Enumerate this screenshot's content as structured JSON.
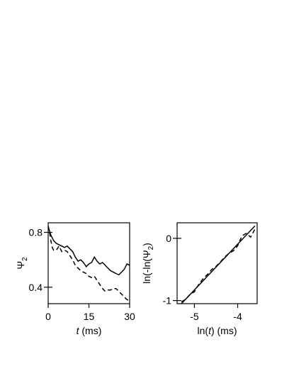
{
  "chart_data": [
    {
      "type": "line",
      "xlabel": {
        "italic": "t",
        "rest": " (ms)"
      },
      "ylabel": {
        "base": "Ψ",
        "sub": "2"
      },
      "xlim": [
        0,
        30
      ],
      "ylim": [
        0.28,
        0.87
      ],
      "xticks": [
        {
          "value": 0,
          "label": "0"
        },
        {
          "value": 15,
          "label": "15"
        },
        {
          "value": 30,
          "label": "30"
        }
      ],
      "yticks": [
        {
          "value": 0.4,
          "label": "0.4"
        },
        {
          "value": 0.8,
          "label": "0.8"
        }
      ],
      "series": [
        {
          "style": "solid",
          "x": [
            0,
            0.5,
            1,
            1.5,
            2,
            3,
            4,
            5,
            6,
            7,
            8,
            9,
            10,
            11,
            12,
            13,
            14,
            15,
            16,
            17,
            18,
            19,
            20,
            21,
            22,
            23,
            24,
            25,
            26,
            27,
            28,
            29,
            30
          ],
          "y": [
            0.84,
            0.81,
            0.78,
            0.76,
            0.74,
            0.72,
            0.71,
            0.7,
            0.69,
            0.7,
            0.68,
            0.66,
            0.62,
            0.59,
            0.6,
            0.58,
            0.55,
            0.57,
            0.58,
            0.62,
            0.59,
            0.57,
            0.58,
            0.56,
            0.54,
            0.52,
            0.51,
            0.5,
            0.49,
            0.51,
            0.53,
            0.57,
            0.56
          ]
        },
        {
          "style": "dashed",
          "x": [
            0,
            0.5,
            1,
            1.5,
            2,
            3,
            4,
            5,
            6,
            7,
            8,
            9,
            10,
            11,
            12,
            13,
            14,
            15,
            16,
            17,
            18,
            19,
            20,
            21,
            22,
            23,
            24,
            25,
            26,
            27,
            28,
            29,
            30
          ],
          "y": [
            0.85,
            0.8,
            0.74,
            0.69,
            0.67,
            0.67,
            0.7,
            0.66,
            0.67,
            0.66,
            0.63,
            0.6,
            0.56,
            0.54,
            0.52,
            0.51,
            0.5,
            0.48,
            0.47,
            0.48,
            0.45,
            0.42,
            0.39,
            0.37,
            0.38,
            0.38,
            0.39,
            0.39,
            0.37,
            0.35,
            0.33,
            0.31,
            0.3
          ]
        }
      ]
    },
    {
      "type": "line",
      "xlabel": {
        "pre": "ln(",
        "italic": "t",
        "post": ") (ms)"
      },
      "ylabel": {
        "pre": "ln(-ln(Ψ",
        "sub": "2",
        "post": ")"
      },
      "xlim": [
        -5.4,
        -3.55
      ],
      "ylim": [
        -1.05,
        0.25
      ],
      "xticks": [
        {
          "value": -5,
          "label": "-5"
        },
        {
          "value": -4,
          "label": "-4"
        }
      ],
      "yticks": [
        {
          "value": -1,
          "label": "-1"
        },
        {
          "value": 0,
          "label": "0"
        }
      ],
      "series": [
        {
          "style": "solid",
          "x": [
            -5.3,
            -3.6
          ],
          "y": [
            -1.05,
            0.2
          ]
        },
        {
          "style": "dashed",
          "x": [
            -5.3,
            -5.2,
            -5.1,
            -5.0,
            -4.9,
            -4.8,
            -4.7,
            -4.6,
            -4.5,
            -4.4,
            -4.3,
            -4.2,
            -4.1,
            -4.0,
            -3.9,
            -3.8,
            -3.7,
            -3.6
          ],
          "y": [
            -1.02,
            -0.98,
            -0.9,
            -0.86,
            -0.74,
            -0.65,
            -0.58,
            -0.5,
            -0.45,
            -0.38,
            -0.3,
            -0.24,
            -0.2,
            -0.12,
            0.04,
            0.08,
            0.02,
            0.15
          ]
        }
      ]
    }
  ]
}
